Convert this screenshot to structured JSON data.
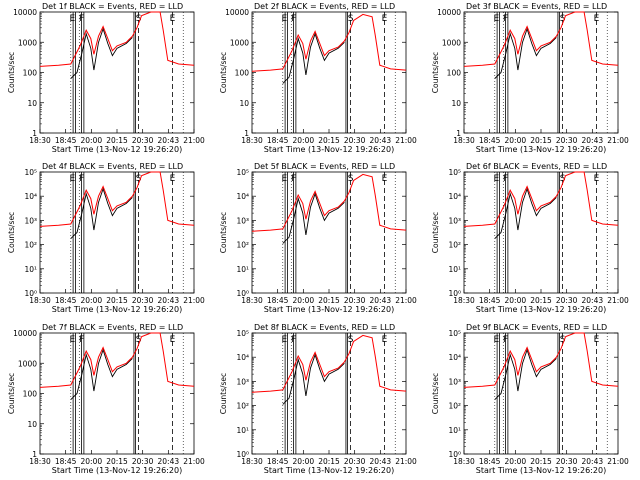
{
  "colors": {
    "events": "#000000",
    "lld": "#ff0000",
    "axes": "#000000",
    "background": "#ffffff"
  },
  "x_tick_labels": [
    "18:30",
    "18:45",
    "20:00",
    "20:15",
    "20:30",
    "20:43",
    "21:00"
  ],
  "xlabel": "Start Time (13-Nov-12 19:26:20)",
  "ylabel": "Counts/sec",
  "marker_letters": [
    "E",
    "F",
    "S",
    "E"
  ],
  "chart_data": [
    {
      "type": "line",
      "title": "Det 1f BLACK = Events, RED = LLD",
      "yscale": "log",
      "y_tick_labels": [
        "1",
        "10",
        "100",
        "1000",
        "10000"
      ],
      "series": [
        {
          "name": "Events"
        },
        {
          "name": "LLD"
        }
      ]
    },
    {
      "type": "line",
      "title": "Det 2f BLACK = Events, RED = LLD",
      "yscale": "log",
      "y_tick_labels": [
        "1",
        "10",
        "100",
        "1000",
        "10000"
      ],
      "series": [
        {
          "name": "Events"
        },
        {
          "name": "LLD"
        }
      ]
    },
    {
      "type": "line",
      "title": "Det 3f BLACK = Events, RED = LLD",
      "yscale": "log",
      "y_tick_labels": [
        "1",
        "10",
        "100",
        "1000",
        "10000"
      ],
      "series": [
        {
          "name": "Events"
        },
        {
          "name": "LLD"
        }
      ]
    },
    {
      "type": "line",
      "title": "Det 4f BLACK = Events, RED = LLD",
      "yscale": "log",
      "y_tick_labels": [
        "10⁰",
        "10¹",
        "10²",
        "10³",
        "10⁴",
        "10⁵"
      ],
      "series": [
        {
          "name": "Events"
        },
        {
          "name": "LLD"
        }
      ]
    },
    {
      "type": "line",
      "title": "Det 5f BLACK = Events, RED = LLD",
      "yscale": "log",
      "y_tick_labels": [
        "10⁰",
        "10¹",
        "10²",
        "10³",
        "10⁴",
        "10⁵"
      ],
      "series": [
        {
          "name": "Events"
        },
        {
          "name": "LLD"
        }
      ]
    },
    {
      "type": "line",
      "title": "Det 6f BLACK = Events, RED = LLD",
      "yscale": "log",
      "y_tick_labels": [
        "10⁰",
        "10¹",
        "10²",
        "10³",
        "10⁴",
        "10⁵"
      ],
      "series": [
        {
          "name": "Events"
        },
        {
          "name": "LLD"
        }
      ]
    },
    {
      "type": "line",
      "title": "Det 7f BLACK = Events, RED = LLD",
      "yscale": "log",
      "y_tick_labels": [
        "1",
        "10",
        "100",
        "1000",
        "10000"
      ],
      "series": [
        {
          "name": "Events"
        },
        {
          "name": "LLD"
        }
      ]
    },
    {
      "type": "line",
      "title": "Det 8f BLACK = Events, RED = LLD",
      "yscale": "log",
      "y_tick_labels": [
        "10⁰",
        "10¹",
        "10²",
        "10³",
        "10⁴",
        "10⁵"
      ],
      "series": [
        {
          "name": "Events"
        },
        {
          "name": "LLD"
        }
      ]
    },
    {
      "type": "line",
      "title": "Det 9f BLACK = Events, RED = LLD",
      "yscale": "log",
      "y_tick_labels": [
        "10⁰",
        "10¹",
        "10²",
        "10³",
        "10⁴",
        "10⁵"
      ],
      "series": [
        {
          "name": "Events"
        },
        {
          "name": "LLD"
        }
      ]
    }
  ]
}
